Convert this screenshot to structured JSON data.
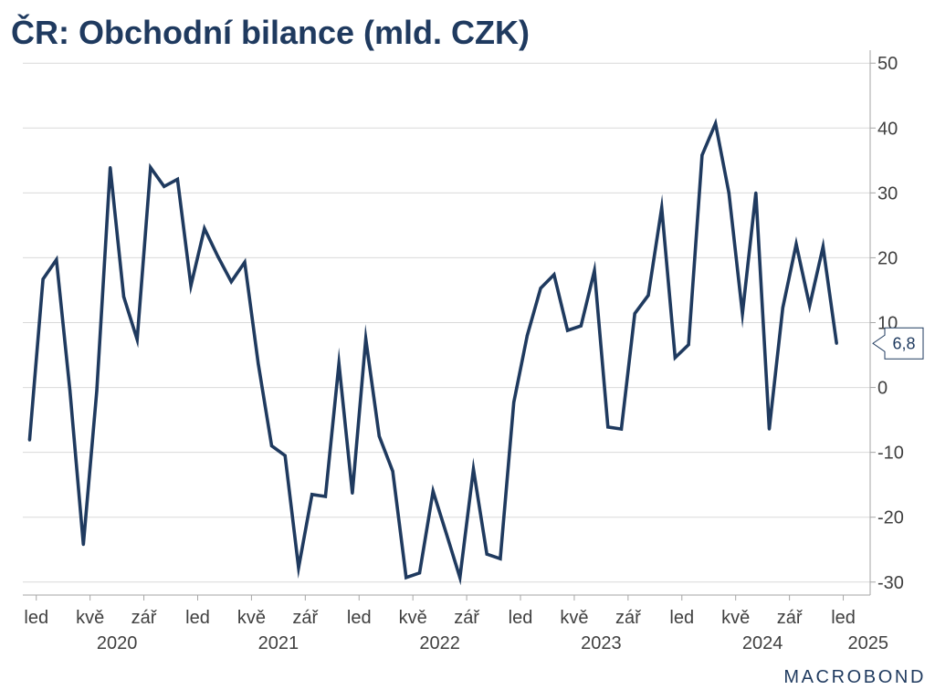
{
  "chart_data": {
    "type": "line",
    "title": "ČR: Obchodní bilance (mld. CZK)",
    "x": [
      "2019-12",
      "2020-01",
      "2020-02",
      "2020-03",
      "2020-04",
      "2020-05",
      "2020-06",
      "2020-07",
      "2020-08",
      "2020-09",
      "2020-10",
      "2020-11",
      "2020-12",
      "2021-01",
      "2021-02",
      "2021-03",
      "2021-04",
      "2021-05",
      "2021-06",
      "2021-07",
      "2021-08",
      "2021-09",
      "2021-10",
      "2021-11",
      "2021-12",
      "2022-01",
      "2022-02",
      "2022-03",
      "2022-04",
      "2022-05",
      "2022-06",
      "2022-07",
      "2022-08",
      "2022-09",
      "2022-10",
      "2022-11",
      "2022-12",
      "2023-01",
      "2023-02",
      "2023-03",
      "2023-04",
      "2023-05",
      "2023-06",
      "2023-07",
      "2023-08",
      "2023-09",
      "2023-10",
      "2023-11",
      "2023-12",
      "2024-01",
      "2024-02",
      "2024-03",
      "2024-04",
      "2024-05",
      "2024-06",
      "2024-07",
      "2024-08",
      "2024-09",
      "2024-10",
      "2024-11",
      "2024-12"
    ],
    "values": [
      -8.1,
      16.7,
      19.7,
      -0.5,
      -24.2,
      -0.5,
      33.9,
      14.0,
      7.4,
      33.9,
      31.0,
      32.1,
      15.7,
      24.5,
      20.2,
      16.3,
      19.3,
      3.7,
      -9.0,
      -10.5,
      -27.8,
      -16.5,
      -16.8,
      3.7,
      -16.3,
      7.5,
      -7.5,
      -12.9,
      -29.3,
      -28.6,
      -16.0,
      -22.6,
      -29.3,
      -12.6,
      -25.7,
      -26.4,
      -2.3,
      8.0,
      15.3,
      17.4,
      8.8,
      9.5,
      18.0,
      -6.1,
      -6.4,
      11.4,
      14.2,
      27.7,
      4.6,
      6.6,
      35.8,
      40.7,
      30.0,
      11.4,
      30.0,
      -6.4,
      12.3,
      22.1,
      12.6,
      21.7,
      6.8
    ],
    "xlim": [
      "2019-12",
      "2025-03"
    ],
    "ylim": [
      -32,
      52
    ],
    "yticks": [
      50,
      40,
      30,
      20,
      10,
      0,
      -10,
      -20,
      -30
    ],
    "xtick_labels": [
      {
        "date": "2020-01",
        "label": "led"
      },
      {
        "date": "2020-05",
        "label": "kvě"
      },
      {
        "date": "2020-09",
        "label": "zář"
      },
      {
        "date": "2021-01",
        "label": "led"
      },
      {
        "date": "2021-05",
        "label": "kvě"
      },
      {
        "date": "2021-09",
        "label": "zář"
      },
      {
        "date": "2022-01",
        "label": "led"
      },
      {
        "date": "2022-05",
        "label": "kvě"
      },
      {
        "date": "2022-09",
        "label": "zář"
      },
      {
        "date": "2023-01",
        "label": "led"
      },
      {
        "date": "2023-05",
        "label": "kvě"
      },
      {
        "date": "2023-09",
        "label": "zář"
      },
      {
        "date": "2024-01",
        "label": "led"
      },
      {
        "date": "2024-05",
        "label": "kvě"
      },
      {
        "date": "2024-09",
        "label": "zář"
      },
      {
        "date": "2025-01",
        "label": "led"
      }
    ],
    "year_labels": [
      "2020",
      "2021",
      "2022",
      "2023",
      "2024",
      "2025"
    ],
    "last_value_label": "6,8",
    "grid": true
  },
  "logo": {
    "text": "MACROBOND"
  },
  "colors": {
    "line": "#1f3a5f",
    "title": "#1f3a5f",
    "grid": "#d9d9d9",
    "axis": "#a6a6a6",
    "axis_text": "#404040",
    "callout": "#1f3a5f",
    "logo": "#1f3a5f",
    "background": "#ffffff"
  }
}
